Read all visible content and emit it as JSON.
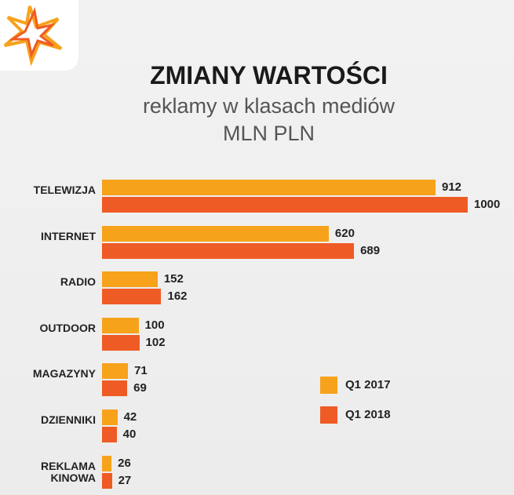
{
  "chart_data": {
    "type": "bar",
    "orientation": "horizontal",
    "title": "ZMIANY WARTOŚCI",
    "subtitle": "reklamy w klasach mediów",
    "unit_label": "MLN PLN",
    "categories": [
      "TELEWIZJA",
      "INTERNET",
      "RADIO",
      "OUTDOOR",
      "MAGAZYNY",
      "DZIENNIKI",
      "REKLAMA KINOWA"
    ],
    "series": [
      {
        "name": "Q1 2017",
        "color": "#f7a21b",
        "values": [
          912,
          620,
          152,
          100,
          71,
          42,
          26
        ]
      },
      {
        "name": "Q1 2018",
        "color": "#ef5b25",
        "values": [
          1000,
          689,
          162,
          102,
          69,
          40,
          27
        ]
      }
    ]
  }
}
